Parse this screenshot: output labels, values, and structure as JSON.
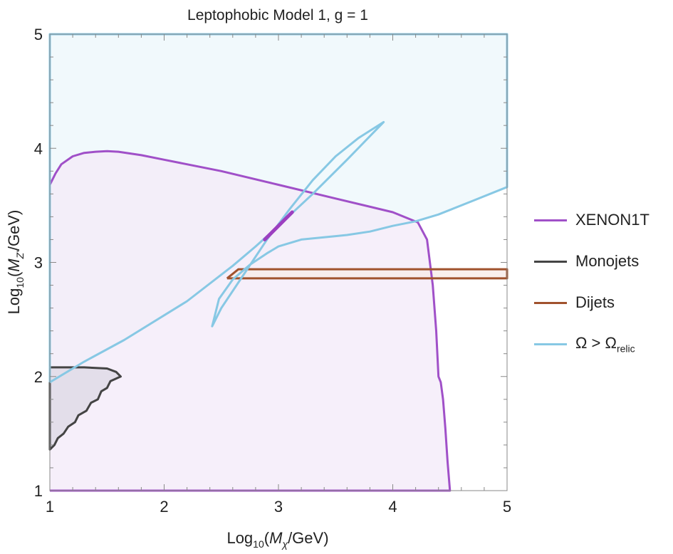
{
  "chart_data": {
    "type": "area",
    "title": "Leptophobic Model 1, g = 1",
    "xlabel": {
      "prefix": "Log",
      "sub": "10",
      "open": "(",
      "var": "M",
      "var_sub": "χ",
      "unit": "/GeV)"
    },
    "ylabel": {
      "prefix": "Log",
      "sub": "10",
      "open": "(",
      "var": "M",
      "var_sub": "Z'",
      "unit": "/GeV)"
    },
    "xlim": [
      1,
      5
    ],
    "ylim": [
      1,
      5
    ],
    "x_ticks": [
      "1",
      "2",
      "3",
      "4",
      "5"
    ],
    "y_ticks": [
      "1",
      "2",
      "3",
      "4",
      "5"
    ],
    "grid": false,
    "legend_position": "right",
    "series": [
      {
        "name": "XENON1T",
        "color": "#a050c8",
        "fill": "#f3eaf8",
        "x": [
          1.0,
          1.05,
          1.1,
          1.2,
          1.3,
          1.4,
          1.5,
          1.6,
          1.8,
          2.0,
          2.5,
          3.0,
          3.5,
          4.0,
          4.22,
          4.3,
          4.35,
          4.38,
          4.4,
          4.42,
          4.44,
          4.46,
          4.48,
          4.5,
          1.0
        ],
        "y": [
          3.68,
          3.78,
          3.86,
          3.93,
          3.96,
          3.97,
          3.975,
          3.97,
          3.94,
          3.9,
          3.8,
          3.68,
          3.56,
          3.44,
          3.35,
          3.2,
          2.8,
          2.4,
          2.0,
          1.95,
          1.8,
          1.55,
          1.25,
          1.0,
          1.0
        ]
      },
      {
        "name": "Monojets",
        "color": "#444444",
        "fill": "#dedae6",
        "x": [
          1.0,
          1.3,
          1.5,
          1.58,
          1.62,
          1.53,
          1.5,
          1.45,
          1.42,
          1.36,
          1.32,
          1.25,
          1.22,
          1.16,
          1.12,
          1.07,
          1.04,
          1.0,
          1.0
        ],
        "y": [
          2.08,
          2.08,
          2.07,
          2.04,
          2.0,
          1.96,
          1.9,
          1.87,
          1.8,
          1.77,
          1.7,
          1.66,
          1.6,
          1.56,
          1.5,
          1.46,
          1.4,
          1.36,
          2.08
        ]
      },
      {
        "name": "Dijets",
        "color": "#a0522d",
        "fill": "#f8ebe8",
        "x": [
          2.55,
          2.65,
          5.0,
          5.0,
          2.55
        ],
        "y": [
          2.86,
          2.94,
          2.94,
          2.86,
          2.86
        ]
      },
      {
        "name": "Ω > Ω",
        "name_sub": "relic",
        "color": "#87c8e4",
        "fill": "#edf7fb",
        "x": [
          1.0,
          1.0,
          5.0,
          5.0,
          4.7,
          4.4,
          4.2,
          4.0,
          3.8,
          3.6,
          3.5,
          3.2,
          3.0,
          2.9,
          2.75,
          2.6,
          2.48,
          2.42,
          2.5,
          2.7,
          2.9,
          3.1,
          3.3,
          3.5,
          3.7,
          3.92,
          3.6,
          3.3,
          3.0,
          2.8,
          2.6,
          2.2,
          1.65,
          1.3,
          1.0
        ],
        "y": [
          1.95,
          5.0,
          5.0,
          3.66,
          3.54,
          3.42,
          3.36,
          3.32,
          3.27,
          3.24,
          3.23,
          3.2,
          3.14,
          3.08,
          2.98,
          2.85,
          2.68,
          2.44,
          2.6,
          2.9,
          3.2,
          3.47,
          3.72,
          3.93,
          4.09,
          4.23,
          3.9,
          3.6,
          3.32,
          3.14,
          2.97,
          2.66,
          2.32,
          2.13,
          1.95
        ]
      }
    ],
    "annotations": [
      {
        "type": "segment",
        "color": "#9c3fc0",
        "x": [
          2.88,
          3.12
        ],
        "y": [
          3.2,
          3.44
        ]
      }
    ]
  }
}
